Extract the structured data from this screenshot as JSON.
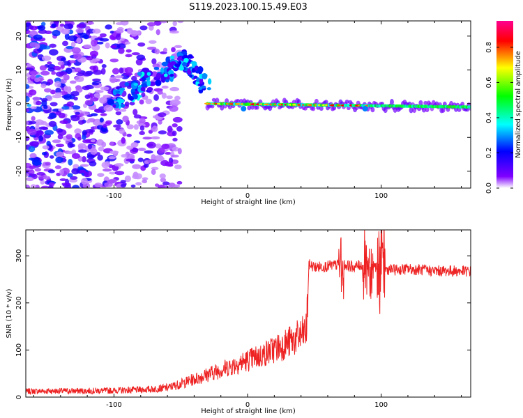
{
  "title": "S119.2023.100.15.49.E03",
  "chart_data": [
    {
      "type": "heatmap",
      "xlabel": "Height of straight line (km)",
      "ylabel": "Frequency (Hz)",
      "xlim": [
        -166,
        167
      ],
      "ylim": [
        -25,
        24.5
      ],
      "xticks": [
        -100,
        0,
        100
      ],
      "xtick_labels": [
        "-100",
        "0",
        "100"
      ],
      "yticks": [
        -20,
        -10,
        0,
        10,
        20
      ],
      "ytick_labels": [
        "-20",
        "-10",
        "0",
        "10",
        "20"
      ],
      "colorbar": {
        "label": "Normalized spectral amplitude",
        "range": [
          0,
          0.95
        ],
        "ticks": [
          0.0,
          0.2,
          0.4,
          0.6,
          0.8
        ],
        "tick_labels": [
          "0.0",
          "0.2",
          "0.4",
          "0.6",
          "0.8"
        ],
        "colormap": [
          "#ffffff",
          "#7f00ff",
          "#0000ff",
          "#00ffff",
          "#00ff00",
          "#ffff00",
          "#ff0000",
          "#ff0090"
        ]
      },
      "features": {
        "noise_region_x": [
          -166,
          -60
        ],
        "rising_branch": [
          [
            -100,
            0
          ],
          [
            -80,
            6
          ],
          [
            -60,
            10
          ],
          [
            -45,
            13
          ],
          [
            -30,
            3
          ]
        ],
        "carrier_x": [
          -30,
          167
        ],
        "carrier_freq_hz": 0,
        "carrier_drift_end_hz": -1
      },
      "grid": false,
      "legend": "none"
    },
    {
      "type": "line",
      "xlabel": "Height of straight line (km)",
      "ylabel": "SNR (10 * v/v)",
      "xlim": [
        -166,
        167
      ],
      "ylim": [
        0,
        355
      ],
      "xticks": [
        -100,
        0,
        100
      ],
      "xtick_labels": [
        "-100",
        "0",
        "100"
      ],
      "yticks": [
        0,
        100,
        200,
        300
      ],
      "ytick_labels": [
        "0",
        "100",
        "200",
        "300"
      ],
      "series": [
        {
          "color": "#ee2222",
          "x": [
            -166,
            -150,
            -125,
            -100,
            -75,
            -60,
            -50,
            -40,
            -30,
            -20,
            -10,
            0,
            10,
            20,
            30,
            40,
            44,
            46,
            50,
            60,
            70,
            80,
            90,
            100,
            110,
            120,
            130,
            140,
            150,
            167
          ],
          "y": [
            12,
            13,
            13,
            14,
            16,
            20,
            28,
            38,
            48,
            58,
            68,
            78,
            88,
            102,
            115,
            130,
            140,
            282,
            276,
            278,
            282,
            276,
            286,
            272,
            270,
            272,
            270,
            268,
            268,
            267
          ]
        }
      ],
      "grid": false,
      "legend": "none"
    }
  ]
}
